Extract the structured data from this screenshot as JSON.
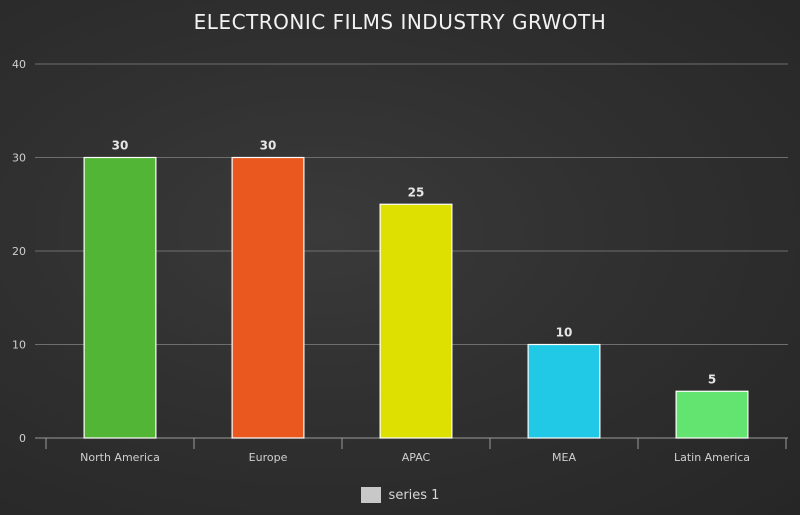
{
  "chart_data": {
    "type": "bar",
    "title": "ELECTRONIC FILMS INDUSTRY GRWOTH",
    "categories": [
      "North America",
      "Europe",
      "APAC",
      "MEA",
      "Latin America"
    ],
    "series": [
      {
        "name": "series 1",
        "values": [
          30,
          30,
          25,
          10,
          5
        ]
      }
    ],
    "bar_colors": [
      "#52b535",
      "#ea581f",
      "#dde000",
      "#22c9e6",
      "#63e36f"
    ],
    "ylim": [
      0,
      40
    ],
    "yticks": [
      0,
      10,
      20,
      30,
      40
    ],
    "grid": true,
    "legend_position": "bottom-center",
    "data_labels": true
  }
}
